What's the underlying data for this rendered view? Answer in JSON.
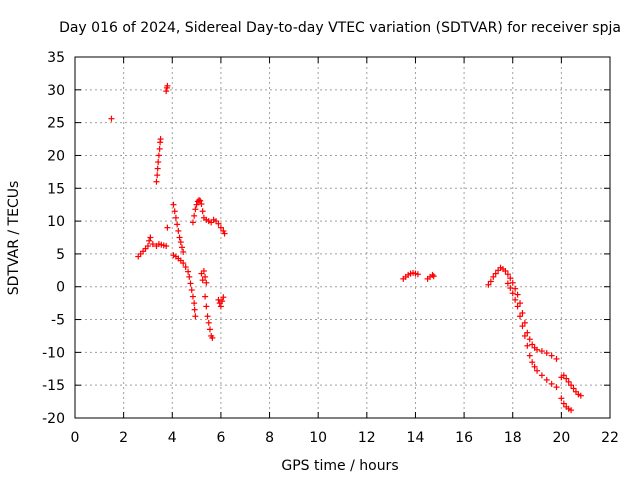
{
  "chart_data": {
    "type": "scatter",
    "title": "Day 016 of 2024, Sidereal Day-to-day VTEC variation (SDTVAR) for receiver spja",
    "xlabel": "GPS time / hours",
    "ylabel": "SDTVAR / TECUs",
    "xlim": [
      0,
      22
    ],
    "ylim": [
      -20,
      35
    ],
    "xticks": [
      0,
      2,
      4,
      6,
      8,
      10,
      12,
      14,
      16,
      18,
      20,
      22
    ],
    "yticks": [
      -20,
      -15,
      -10,
      -5,
      0,
      5,
      10,
      15,
      20,
      25,
      30,
      35
    ],
    "grid": true,
    "marker": "+",
    "marker_color": "#ff0000",
    "series": [
      {
        "name": "SDTVAR",
        "points": [
          [
            1.5,
            25.6
          ],
          [
            2.6,
            4.6
          ],
          [
            2.7,
            5.0
          ],
          [
            2.8,
            5.4
          ],
          [
            2.9,
            5.8
          ],
          [
            3.0,
            6.2
          ],
          [
            3.05,
            7.0
          ],
          [
            3.1,
            7.5
          ],
          [
            3.2,
            6.5
          ],
          [
            3.35,
            6.2
          ],
          [
            3.45,
            6.5
          ],
          [
            3.55,
            6.4
          ],
          [
            3.65,
            6.3
          ],
          [
            3.75,
            6.2
          ],
          [
            3.35,
            16.0
          ],
          [
            3.38,
            17.0
          ],
          [
            3.4,
            18.0
          ],
          [
            3.42,
            19.0
          ],
          [
            3.45,
            20.0
          ],
          [
            3.48,
            21.0
          ],
          [
            3.5,
            22.0
          ],
          [
            3.52,
            22.5
          ],
          [
            3.75,
            29.8
          ],
          [
            3.78,
            30.3
          ],
          [
            3.8,
            30.6
          ],
          [
            3.8,
            9.0
          ],
          [
            4.05,
            12.5
          ],
          [
            4.1,
            11.5
          ],
          [
            4.15,
            10.5
          ],
          [
            4.2,
            9.5
          ],
          [
            4.25,
            8.5
          ],
          [
            4.3,
            7.5
          ],
          [
            4.35,
            6.8
          ],
          [
            4.4,
            6.0
          ],
          [
            4.45,
            5.3
          ],
          [
            4.05,
            4.8
          ],
          [
            4.15,
            4.6
          ],
          [
            4.25,
            4.3
          ],
          [
            4.35,
            4.0
          ],
          [
            4.45,
            3.6
          ],
          [
            4.55,
            3.0
          ],
          [
            4.65,
            2.3
          ],
          [
            4.7,
            1.5
          ],
          [
            4.75,
            0.5
          ],
          [
            4.8,
            -0.5
          ],
          [
            4.85,
            -1.5
          ],
          [
            4.9,
            -2.5
          ],
          [
            4.92,
            -3.5
          ],
          [
            4.95,
            -4.5
          ],
          [
            4.85,
            9.8
          ],
          [
            4.9,
            10.8
          ],
          [
            4.95,
            11.8
          ],
          [
            5.0,
            12.5
          ],
          [
            5.05,
            13.0
          ],
          [
            5.1,
            13.2
          ],
          [
            5.15,
            13.1
          ],
          [
            5.2,
            12.6
          ],
          [
            5.25,
            11.5
          ],
          [
            5.3,
            10.5
          ],
          [
            5.4,
            10.2
          ],
          [
            5.5,
            10.0
          ],
          [
            5.6,
            9.8
          ],
          [
            5.7,
            10.2
          ],
          [
            5.8,
            10.0
          ],
          [
            5.9,
            9.6
          ],
          [
            6.0,
            9.0
          ],
          [
            6.1,
            8.5
          ],
          [
            6.15,
            8.1
          ],
          [
            5.2,
            2.0
          ],
          [
            5.25,
            1.0
          ],
          [
            5.3,
            2.4
          ],
          [
            5.35,
            1.5
          ],
          [
            5.4,
            0.6
          ],
          [
            5.35,
            -1.5
          ],
          [
            5.4,
            -3.0
          ],
          [
            5.45,
            -4.5
          ],
          [
            5.5,
            -5.5
          ],
          [
            5.55,
            -6.5
          ],
          [
            5.6,
            -7.5
          ],
          [
            5.65,
            -7.8
          ],
          [
            5.9,
            -2.0
          ],
          [
            5.95,
            -2.5
          ],
          [
            6.0,
            -3.0
          ],
          [
            6.05,
            -2.2
          ],
          [
            6.1,
            -1.6
          ],
          [
            13.5,
            1.2
          ],
          [
            13.6,
            1.5
          ],
          [
            13.7,
            1.8
          ],
          [
            13.8,
            2.0
          ],
          [
            13.9,
            2.1
          ],
          [
            14.0,
            2.0
          ],
          [
            14.1,
            1.9
          ],
          [
            14.5,
            1.2
          ],
          [
            14.6,
            1.5
          ],
          [
            14.7,
            1.8
          ],
          [
            14.75,
            1.6
          ],
          [
            17.0,
            0.3
          ],
          [
            17.1,
            0.8
          ],
          [
            17.2,
            1.5
          ],
          [
            17.3,
            2.0
          ],
          [
            17.4,
            2.5
          ],
          [
            17.5,
            2.9
          ],
          [
            17.6,
            2.7
          ],
          [
            17.7,
            2.4
          ],
          [
            17.8,
            1.9
          ],
          [
            17.9,
            1.3
          ],
          [
            18.0,
            0.6
          ],
          [
            18.1,
            -0.3
          ],
          [
            18.2,
            -1.2
          ],
          [
            18.3,
            -2.5
          ],
          [
            18.4,
            -4.0
          ],
          [
            18.5,
            -5.5
          ],
          [
            18.6,
            -7.0
          ],
          [
            18.7,
            -8.0
          ],
          [
            18.8,
            -8.8
          ],
          [
            18.9,
            -9.3
          ],
          [
            19.0,
            -9.6
          ],
          [
            19.2,
            -9.8
          ],
          [
            19.4,
            -10.1
          ],
          [
            19.6,
            -10.5
          ],
          [
            19.8,
            -11.0
          ],
          [
            17.8,
            0.5
          ],
          [
            17.9,
            -0.2
          ],
          [
            18.0,
            -1.0
          ],
          [
            18.1,
            -2.0
          ],
          [
            18.2,
            -3.0
          ],
          [
            18.3,
            -4.5
          ],
          [
            18.4,
            -6.0
          ],
          [
            18.5,
            -7.5
          ],
          [
            18.6,
            -9.0
          ],
          [
            18.7,
            -10.5
          ],
          [
            18.8,
            -11.5
          ],
          [
            18.9,
            -12.2
          ],
          [
            19.0,
            -12.8
          ],
          [
            19.2,
            -13.5
          ],
          [
            19.4,
            -14.2
          ],
          [
            19.6,
            -14.8
          ],
          [
            19.8,
            -15.3
          ],
          [
            20.0,
            -13.8
          ],
          [
            20.1,
            -13.5
          ],
          [
            20.2,
            -14.0
          ],
          [
            20.3,
            -14.5
          ],
          [
            20.4,
            -15.0
          ],
          [
            20.5,
            -15.5
          ],
          [
            20.6,
            -16.0
          ],
          [
            20.7,
            -16.4
          ],
          [
            20.8,
            -16.6
          ],
          [
            20.0,
            -17.0
          ],
          [
            20.1,
            -17.8
          ],
          [
            20.2,
            -18.3
          ],
          [
            20.3,
            -18.6
          ],
          [
            20.4,
            -18.8
          ]
        ]
      }
    ]
  }
}
